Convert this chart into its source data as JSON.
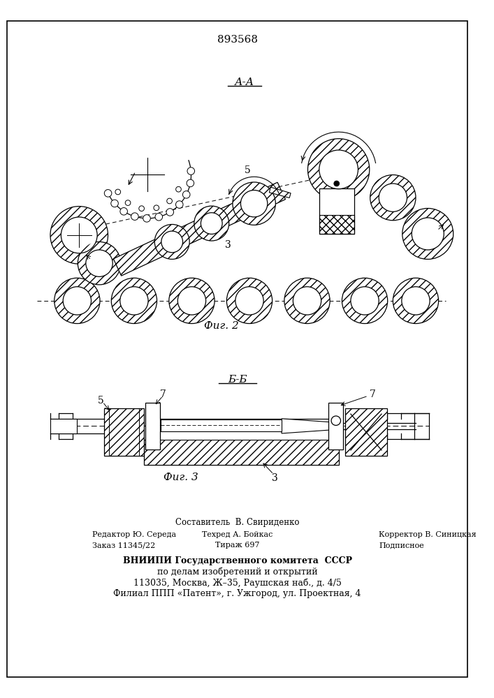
{
  "patent_number": "893568",
  "fig2_label": "А-А",
  "fig2_caption": "Фиг. 2",
  "fig3_label": "Б-Б",
  "fig3_caption": "Фиг. 3",
  "label_3": "3",
  "label_5_fig2": "5",
  "label_5_fig3": "5",
  "label_7a": "7",
  "label_7b": "7",
  "footer_line1": "Составитель  В. Свириденко",
  "footer_line2_left": "Редактор Ю. Середа",
  "footer_line2_mid": "Техред А. Бойкас",
  "footer_line2_right": "Корректор В. Синицкая",
  "footer_line3_left": "Заказ 11345/22",
  "footer_line3_mid": "Тираж 697",
  "footer_line3_right": "Подписное",
  "footer_vniiipi": "ВНИИПИ Государственного комитета  СССР",
  "footer_vniiipi2": "по делам изобретений и открытий",
  "footer_addr": "113035, Москва, Ж–35, Раушская наб., д. 4/5",
  "footer_filial": "Филиал ППП «Патент», г. Ужгород, ул. Проектная, 4",
  "bg_color": "#ffffff",
  "line_color": "#000000"
}
